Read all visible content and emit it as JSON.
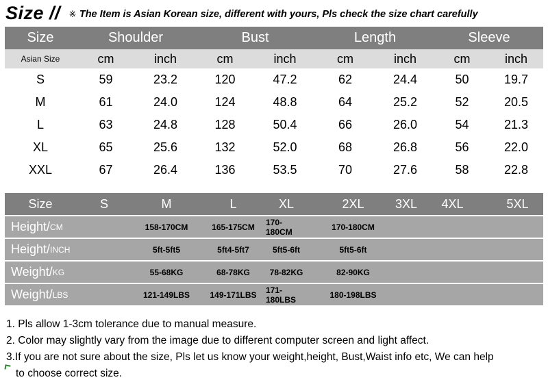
{
  "header": {
    "title": "Size //",
    "mark": "※",
    "note": "The Item is Asian Korean size, different with yours, Pls check the size chart carefully"
  },
  "size_chart": {
    "columns": [
      "Size",
      "Shoulder",
      "Bust",
      "Length",
      "Sleeve"
    ],
    "sub_header": [
      "Asian Size",
      "cm",
      "inch",
      "cm",
      "inch",
      "cm",
      "inch",
      "cm",
      "inch"
    ],
    "rows": [
      [
        "S",
        "59",
        "23.2",
        "120",
        "47.2",
        "62",
        "24.4",
        "50",
        "19.7"
      ],
      [
        "M",
        "61",
        "24.0",
        "124",
        "48.8",
        "64",
        "25.2",
        "52",
        "20.5"
      ],
      [
        "L",
        "63",
        "24.8",
        "128",
        "50.4",
        "66",
        "26.0",
        "54",
        "21.3"
      ],
      [
        "XL",
        "65",
        "25.6",
        "132",
        "52.0",
        "68",
        "26.8",
        "56",
        "22.0"
      ],
      [
        "XXL",
        "67",
        "26.4",
        "136",
        "53.5",
        "70",
        "27.6",
        "58",
        "22.8"
      ]
    ]
  },
  "fit_guide": {
    "sizes": [
      "Size",
      "S",
      "M",
      "L",
      "XL",
      "2XL",
      "3XL",
      "4XL",
      "5XL"
    ],
    "rows": [
      {
        "label": "Height/",
        "unit": "CM",
        "values": [
          "",
          "158-170CM",
          "165-175CM",
          "170-180CM",
          "170-180CM",
          "",
          "",
          ""
        ]
      },
      {
        "label": "Height/",
        "unit": "INCH",
        "values": [
          "",
          "5ft-5ft5",
          "5ft4-5ft7",
          "5ft5-6ft",
          "5ft5-6ft",
          "",
          "",
          ""
        ]
      },
      {
        "label": "Weight/",
        "unit": "KG",
        "values": [
          "",
          "55-68KG",
          "68-78KG",
          "78-82KG",
          "82-90KG",
          "",
          "",
          ""
        ]
      },
      {
        "label": "Weight/",
        "unit": "LBS",
        "values": [
          "",
          "121-149LBS",
          "149-171LBS",
          "171-180LBS",
          "180-198LBS",
          "",
          "",
          ""
        ]
      }
    ]
  },
  "notes": {
    "line1": "1. Pls allow 1-3cm tolerance due to manual measure.",
    "line2": "2. Color may slightly vary from the image due to different computer screen and light affect.",
    "line3a": "3.If you are not sure about the size, Pls let us know your weight,height, Bust,Waist info etc, We can help",
    "line3b": "to choose correct size."
  },
  "colors": {
    "header_bg": "#7f7f7f",
    "subheader_bg": "#dcdcdc",
    "guide_row_bg": "#a6a6a6"
  }
}
